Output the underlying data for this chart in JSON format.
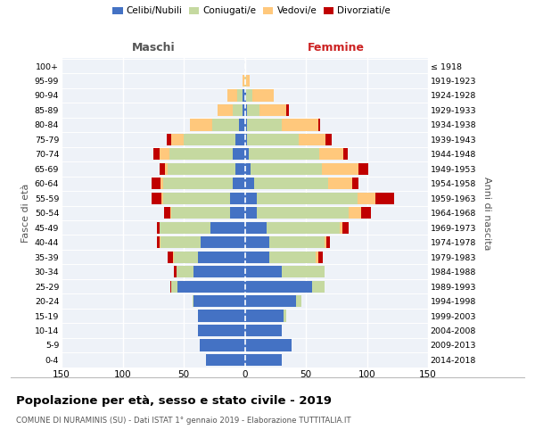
{
  "age_groups": [
    "0-4",
    "5-9",
    "10-14",
    "15-19",
    "20-24",
    "25-29",
    "30-34",
    "35-39",
    "40-44",
    "45-49",
    "50-54",
    "55-59",
    "60-64",
    "65-69",
    "70-74",
    "75-79",
    "80-84",
    "85-89",
    "90-94",
    "95-99",
    "100+"
  ],
  "birth_years": [
    "2014-2018",
    "2009-2013",
    "2004-2008",
    "1999-2003",
    "1994-1998",
    "1989-1993",
    "1984-1988",
    "1979-1983",
    "1974-1978",
    "1969-1973",
    "1964-1968",
    "1959-1963",
    "1954-1958",
    "1949-1953",
    "1944-1948",
    "1939-1943",
    "1934-1938",
    "1929-1933",
    "1924-1928",
    "1919-1923",
    "≤ 1918"
  ],
  "maschi": {
    "celibi": [
      32,
      37,
      38,
      38,
      42,
      55,
      42,
      38,
      36,
      28,
      12,
      12,
      10,
      8,
      10,
      8,
      5,
      2,
      2,
      0,
      0
    ],
    "coniugati": [
      0,
      0,
      0,
      0,
      1,
      5,
      14,
      20,
      33,
      42,
      48,
      55,
      57,
      55,
      52,
      42,
      22,
      8,
      4,
      0,
      0
    ],
    "vedovi": [
      0,
      0,
      0,
      0,
      0,
      0,
      0,
      1,
      1,
      0,
      1,
      1,
      2,
      2,
      8,
      10,
      18,
      12,
      8,
      2,
      0
    ],
    "divorziati": [
      0,
      0,
      0,
      0,
      0,
      1,
      2,
      4,
      2,
      2,
      5,
      8,
      7,
      5,
      5,
      4,
      0,
      0,
      0,
      0,
      0
    ]
  },
  "femmine": {
    "nubili": [
      30,
      38,
      30,
      32,
      42,
      55,
      30,
      20,
      20,
      18,
      10,
      10,
      8,
      5,
      3,
      2,
      2,
      2,
      1,
      0,
      0
    ],
    "coniugate": [
      0,
      0,
      0,
      2,
      4,
      10,
      35,
      38,
      45,
      60,
      75,
      82,
      60,
      58,
      58,
      42,
      28,
      10,
      5,
      1,
      0
    ],
    "vedove": [
      0,
      0,
      0,
      0,
      0,
      0,
      0,
      2,
      2,
      2,
      10,
      15,
      20,
      30,
      20,
      22,
      30,
      22,
      18,
      3,
      0
    ],
    "divorziate": [
      0,
      0,
      0,
      0,
      0,
      0,
      0,
      4,
      3,
      5,
      8,
      15,
      5,
      8,
      3,
      5,
      2,
      2,
      0,
      0,
      0
    ]
  },
  "colors": {
    "celibi": "#4472c4",
    "coniugati": "#c5d9a0",
    "vedovi": "#ffc87c",
    "divorziati": "#c00000"
  },
  "title": "Popolazione per età, sesso e stato civile - 2019",
  "subtitle": "COMUNE DI NURAMINIS (SU) - Dati ISTAT 1° gennaio 2019 - Elaborazione TUTTITALIA.IT",
  "header_maschi": "Maschi",
  "header_femmine": "Femmine",
  "ylabel_left": "Fasce di età",
  "ylabel_right": "Anni di nascita",
  "xlim": 150,
  "xticks": [
    -150,
    -100,
    -50,
    0,
    50,
    100,
    150
  ],
  "legend_labels": [
    "Celibi/Nubili",
    "Coniugati/e",
    "Vedovi/e",
    "Divorziati/e"
  ],
  "bg_color": "#eef2f8"
}
